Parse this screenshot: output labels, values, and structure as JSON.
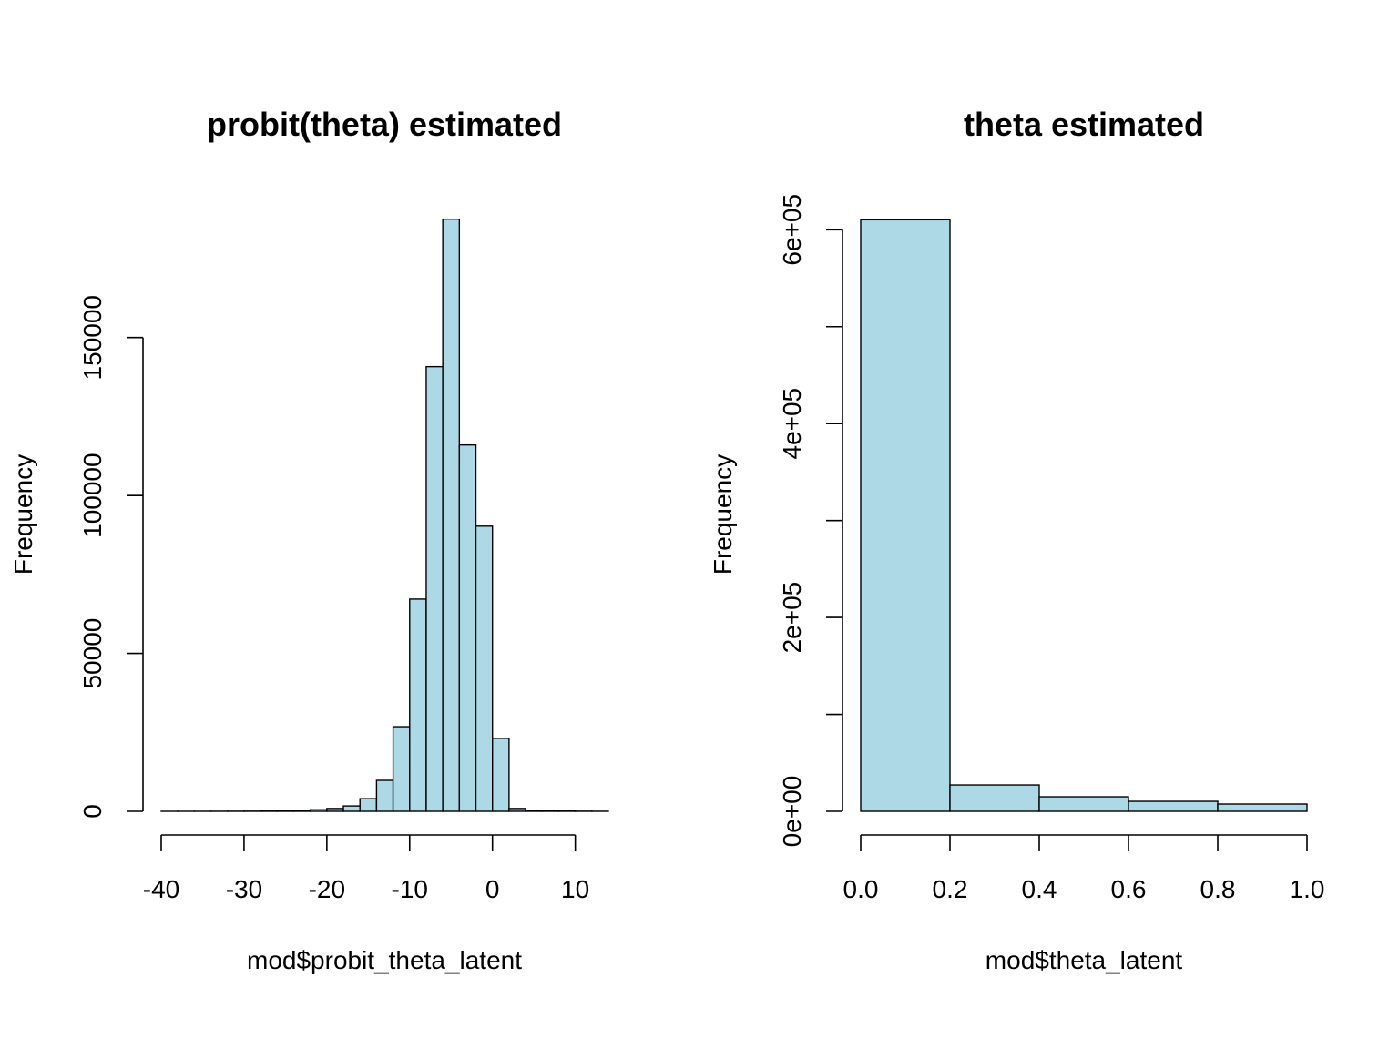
{
  "chart_data": [
    {
      "type": "histogram",
      "title": "probit(theta) estimated",
      "x_label": "mod$probit_theta_latent",
      "y_label": "Frequency",
      "bins": [
        -40,
        -38,
        -36,
        -34,
        -32,
        -30,
        -28,
        -26,
        -24,
        -22,
        -20,
        -18,
        -16,
        -14,
        -12,
        -10,
        -8,
        -6,
        -4,
        -2,
        0,
        2,
        4,
        6,
        8,
        10,
        12,
        14
      ],
      "counts": [
        3,
        5,
        10,
        20,
        30,
        50,
        80,
        150,
        250,
        500,
        900,
        1700,
        4000,
        9800,
        26800,
        67200,
        140800,
        187500,
        116000,
        90300,
        23100,
        900,
        300,
        150,
        80,
        40,
        20
      ],
      "color": "#add8e6",
      "xlim": [
        -40,
        14
      ],
      "xticks": [
        -40,
        -30,
        -20,
        -10,
        0,
        10
      ],
      "ylim": [
        0,
        190000
      ],
      "yticks": [
        0,
        50000,
        100000,
        150000
      ]
    },
    {
      "type": "histogram",
      "title": "theta estimated",
      "x_label": "mod$theta_latent",
      "y_label": "Frequency",
      "bins": [
        0,
        0.2,
        0.4,
        0.6,
        0.8,
        1
      ],
      "counts": [
        610300,
        27200,
        15000,
        10300,
        7500
      ],
      "color": "#add8e6",
      "xlim": [
        0,
        1
      ],
      "xticks": [
        {
          "value": 0,
          "label": "0.0"
        },
        0.2,
        0.4,
        0.6,
        0.8,
        {
          "value": 1,
          "label": "1.0"
        }
      ],
      "ylim": [
        0,
        620000
      ],
      "yticks": [
        {
          "value": 0,
          "label": "0e+00"
        },
        {
          "value": 200000,
          "label": "2e+05"
        },
        {
          "value": 400000,
          "label": "4e+05"
        },
        {
          "value": 600000,
          "label": "6e+05"
        }
      ],
      "yminor_ticks": [
        100000,
        300000,
        500000
      ]
    }
  ]
}
